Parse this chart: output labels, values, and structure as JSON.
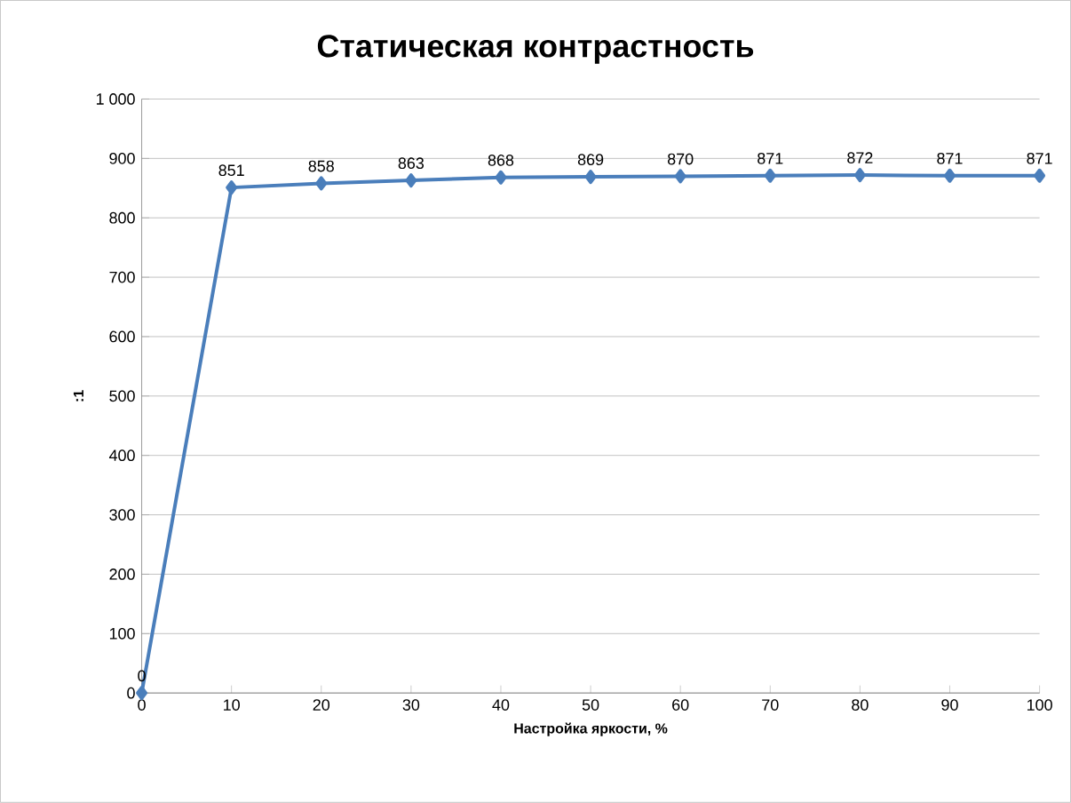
{
  "chart_data": {
    "type": "line",
    "title": "Статическая контрастность",
    "xlabel": "Настройка яркости, %",
    "ylabel": ":1",
    "x": [
      0,
      10,
      20,
      30,
      40,
      50,
      60,
      70,
      80,
      90,
      100
    ],
    "series": [
      {
        "color": "#4a7ebb",
        "values": [
          0,
          851,
          858,
          863,
          868,
          869,
          870,
          871,
          872,
          871,
          871
        ]
      }
    ],
    "xlim": [
      0,
      100
    ],
    "xticks": [
      0,
      10,
      20,
      30,
      40,
      50,
      60,
      70,
      80,
      90,
      100
    ],
    "ylim": [
      0,
      1000
    ],
    "yticks": [
      0,
      100,
      200,
      300,
      400,
      500,
      600,
      700,
      800,
      900,
      {
        "value": 1000,
        "label": "1 000"
      }
    ],
    "grid": "y",
    "marker": "diamond",
    "line_style": "solid",
    "data_labels": true
  }
}
